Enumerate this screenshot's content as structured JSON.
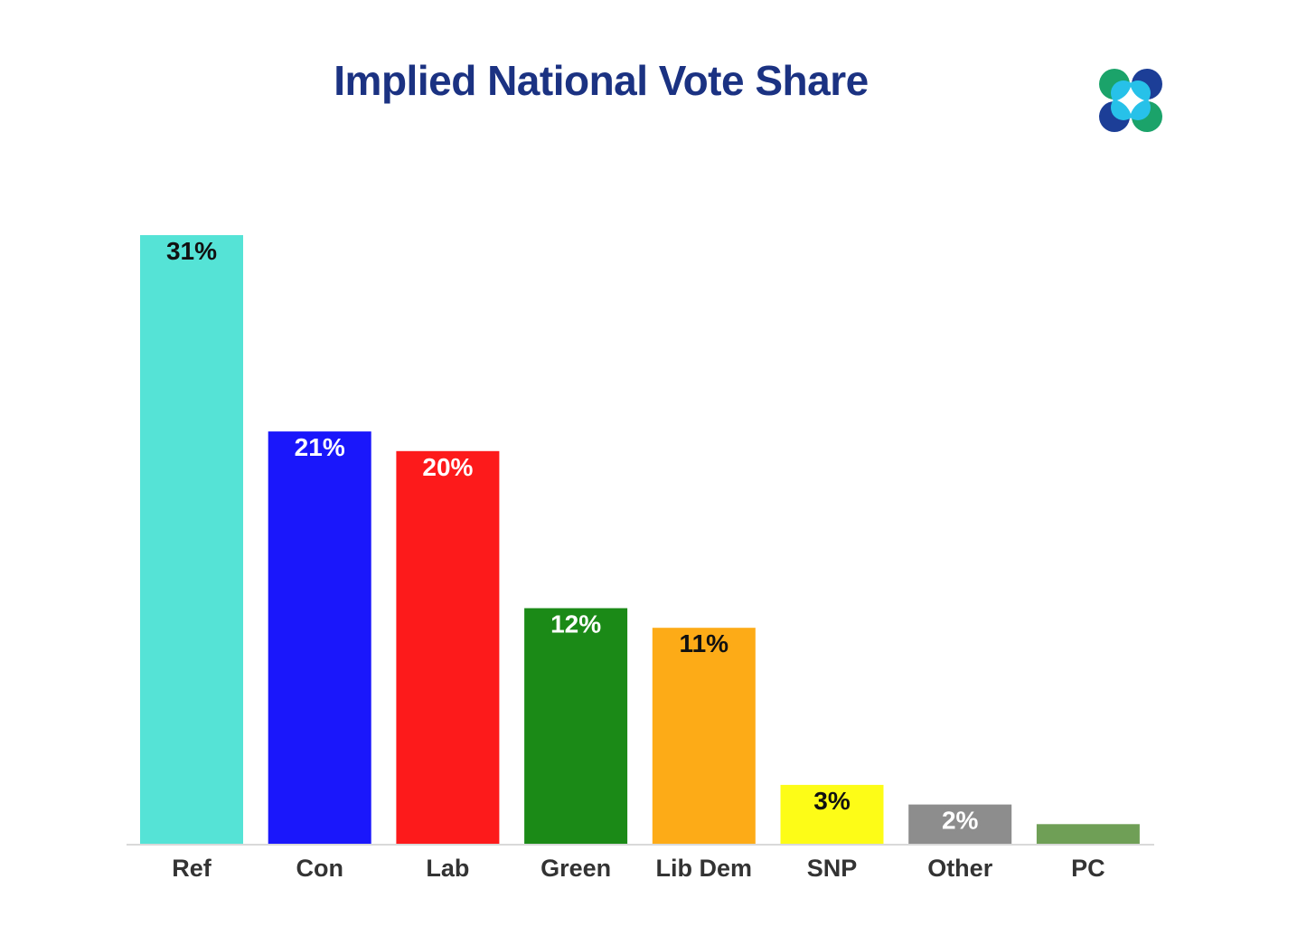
{
  "chart_data": {
    "type": "bar",
    "title": "Implied National Vote Share",
    "xlabel": "",
    "ylabel": "",
    "ylim": [
      0,
      31
    ],
    "grid": false,
    "categories": [
      "Ref",
      "Con",
      "Lab",
      "Green",
      "Lib Dem",
      "SNP",
      "Other",
      "PC"
    ],
    "values": [
      31,
      21,
      20,
      12,
      11,
      3,
      2,
      1
    ],
    "data_labels": [
      "31%",
      "21%",
      "20%",
      "12%",
      "11%",
      "3%",
      "2%",
      ""
    ],
    "colors": [
      "#55e3d6",
      "#1a17fb",
      "#fd1a1b",
      "#1b8a17",
      "#fdab17",
      "#fdfc17",
      "#8d8d8d",
      "#6f9f56"
    ],
    "label_colors": [
      "#111111",
      "#ffffff",
      "#ffffff",
      "#ffffff",
      "#111111",
      "#111111",
      "#ffffff",
      "#ffffff"
    ]
  },
  "logo": {
    "name": "four-petal-logo-icon",
    "colors": [
      "#1ba36a",
      "#1c3e97",
      "#27c1e9"
    ]
  }
}
